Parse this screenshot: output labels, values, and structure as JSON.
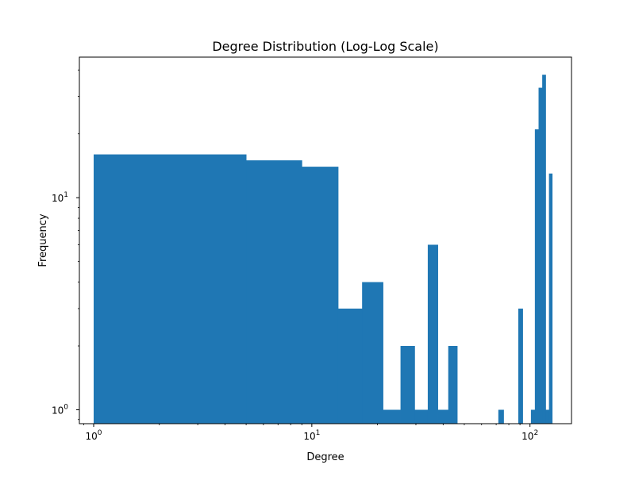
{
  "chart_data": {
    "type": "bar",
    "title": "Degree Distribution (Log-Log Scale)",
    "xlabel": "Degree",
    "ylabel": "Frequency",
    "x_scale": "log",
    "y_scale": "log",
    "xlim": [
      0.86,
      155
    ],
    "ylim": [
      0.86,
      46
    ],
    "grid": false,
    "legend": "none",
    "color": "#1f77b4",
    "x_ticks": [
      {
        "base": "10",
        "exp": "0"
      },
      {
        "base": "10",
        "exp": "1"
      },
      {
        "base": "10",
        "exp": "2"
      }
    ],
    "y_ticks": [
      {
        "base": "10",
        "exp": "0"
      },
      {
        "base": "10",
        "exp": "1"
      }
    ],
    "bins": [
      {
        "x0": 1.0,
        "x1": 5.0,
        "count": 16
      },
      {
        "x0": 5.0,
        "x1": 9.0,
        "count": 15
      },
      {
        "x0": 9.0,
        "x1": 13.2,
        "count": 14
      },
      {
        "x0": 13.2,
        "x1": 17.0,
        "count": 3
      },
      {
        "x0": 17.0,
        "x1": 21.2,
        "count": 4
      },
      {
        "x0": 21.2,
        "x1": 25.5,
        "count": 1
      },
      {
        "x0": 25.5,
        "x1": 29.6,
        "count": 2
      },
      {
        "x0": 29.6,
        "x1": 34.0,
        "count": 1
      },
      {
        "x0": 34.0,
        "x1": 37.8,
        "count": 6
      },
      {
        "x0": 37.8,
        "x1": 42.2,
        "count": 1
      },
      {
        "x0": 42.2,
        "x1": 46.4,
        "count": 2
      },
      {
        "x0": 71.6,
        "x1": 75.7,
        "count": 1
      },
      {
        "x0": 88.4,
        "x1": 92.6,
        "count": 3
      },
      {
        "x0": 101.0,
        "x1": 105.3,
        "count": 1
      },
      {
        "x0": 105.3,
        "x1": 109.5,
        "count": 21
      },
      {
        "x0": 109.5,
        "x1": 113.8,
        "count": 33
      },
      {
        "x0": 113.8,
        "x1": 118.0,
        "count": 38
      },
      {
        "x0": 118.0,
        "x1": 122.2,
        "count": 1
      },
      {
        "x0": 122.2,
        "x1": 126.4,
        "count": 13
      }
    ]
  }
}
